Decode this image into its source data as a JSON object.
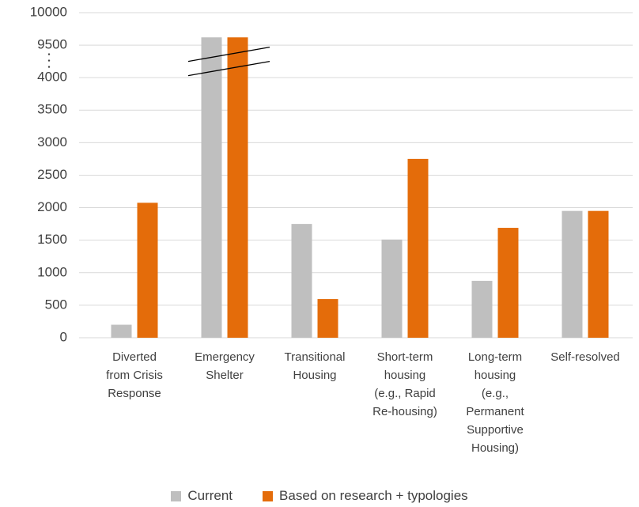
{
  "chart_data": {
    "type": "bar",
    "categories": [
      "Diverted from Crisis Response",
      "Emergency Shelter",
      "Transitional Housing",
      "Short-term housing (e.g., Rapid Re-housing)",
      "Long-term housing (e.g., Permanent Supportive Housing)",
      "Self-resolved"
    ],
    "series": [
      {
        "name": "Current",
        "color": "#bfbfbf",
        "values": [
          200,
          9620,
          1750,
          1510,
          875,
          1950
        ]
      },
      {
        "name": "Based on research + typologies",
        "color": "#e46c0a",
        "values": [
          2075,
          9620,
          595,
          2750,
          1690,
          1950
        ]
      }
    ],
    "ylim": [
      0,
      10000
    ],
    "axis_break": [
      4000,
      9500
    ],
    "yticks": [
      0,
      500,
      1000,
      1500,
      2000,
      2500,
      3000,
      3500,
      4000,
      9500,
      10000
    ],
    "grid": true,
    "legend": "bottom"
  }
}
